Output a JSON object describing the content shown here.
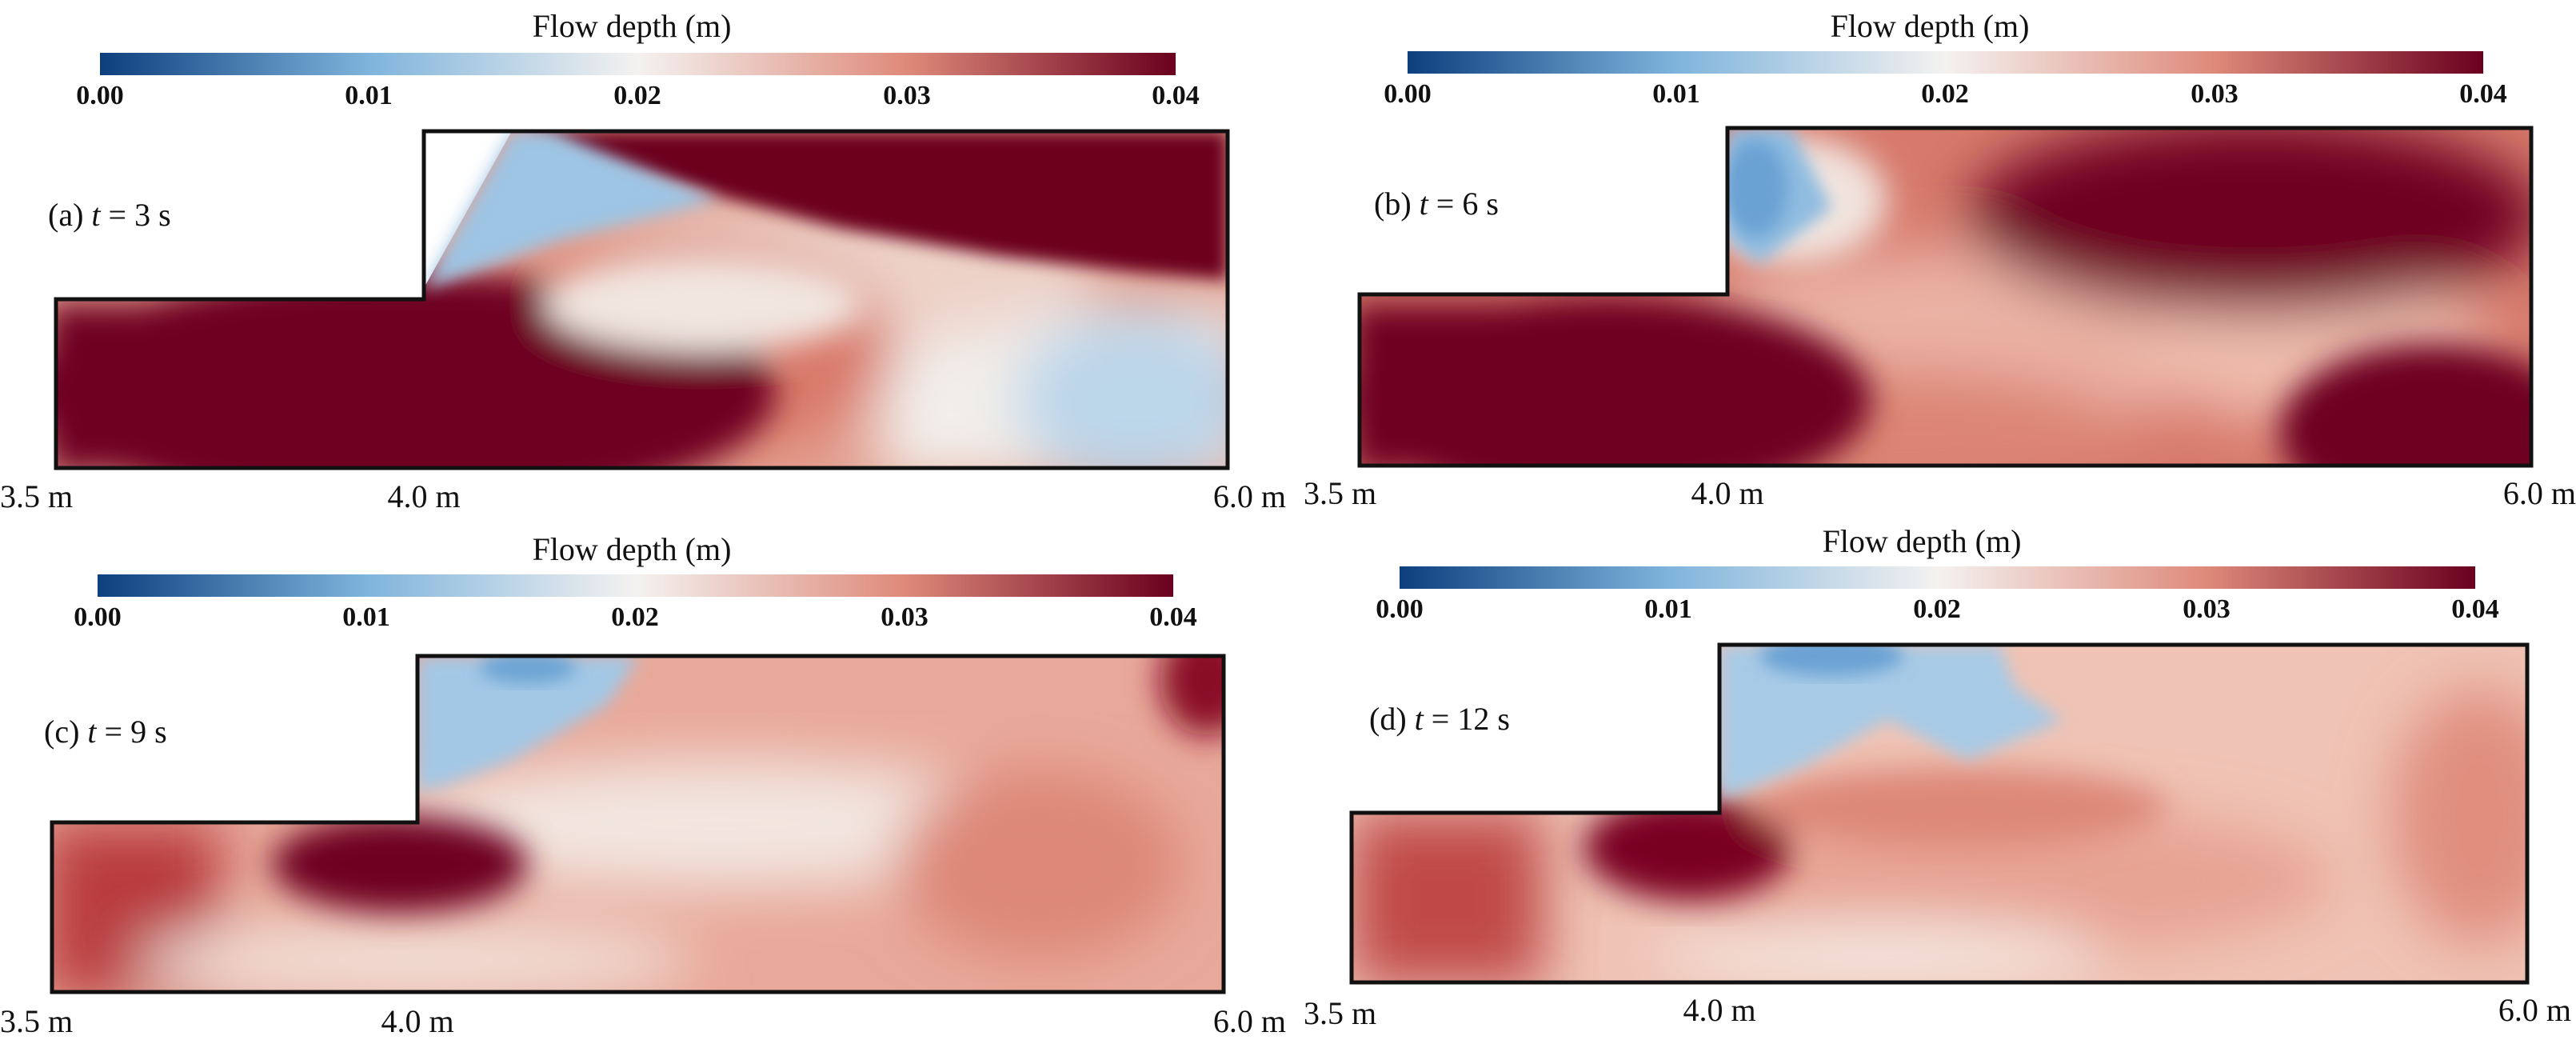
{
  "colors": {
    "deep_blue": "#1a4f8f",
    "light_blue": "#9cc5e3",
    "white": "#f6f4f2",
    "light_red": "#e6a393",
    "salmon": "#d67d70",
    "dark_red": "#6e0020",
    "outline": "#111111"
  },
  "panels": [
    {
      "colorbar": {
        "title": "Flow depth (m)",
        "ticks": [
          "0.00",
          "0.01",
          "0.02",
          "0.03",
          "0.04"
        ]
      },
      "label_prefix": "(a) ",
      "label_var": "t",
      "label_value": " = 3 s",
      "x_labels": [
        "3.5 m",
        "4.0 m",
        "6.0 m"
      ]
    },
    {
      "colorbar": {
        "title": "Flow depth (m)",
        "ticks": [
          "0.00",
          "0.01",
          "0.02",
          "0.03",
          "0.04"
        ]
      },
      "label_prefix": "(b) ",
      "label_var": "t",
      "label_value": " = 6 s",
      "x_labels": [
        "3.5 m",
        "4.0 m",
        "6.0 m"
      ]
    },
    {
      "colorbar": {
        "title": "Flow depth (m)",
        "ticks": [
          "0.00",
          "0.01",
          "0.02",
          "0.03",
          "0.04"
        ]
      },
      "label_prefix": "(c) ",
      "label_var": "t",
      "label_value": " = 9 s",
      "x_labels": [
        "3.5 m",
        "4.0 m",
        "6.0 m"
      ]
    },
    {
      "colorbar": {
        "title": "Flow depth (m)",
        "ticks": [
          "0.00",
          "0.01",
          "0.02",
          "0.03",
          "0.04"
        ]
      },
      "label_prefix": "(d) ",
      "label_var": "t",
      "label_value": " = 12 s",
      "x_labels": [
        "3.5 m",
        "4.0 m",
        "6.0 m"
      ]
    }
  ]
}
